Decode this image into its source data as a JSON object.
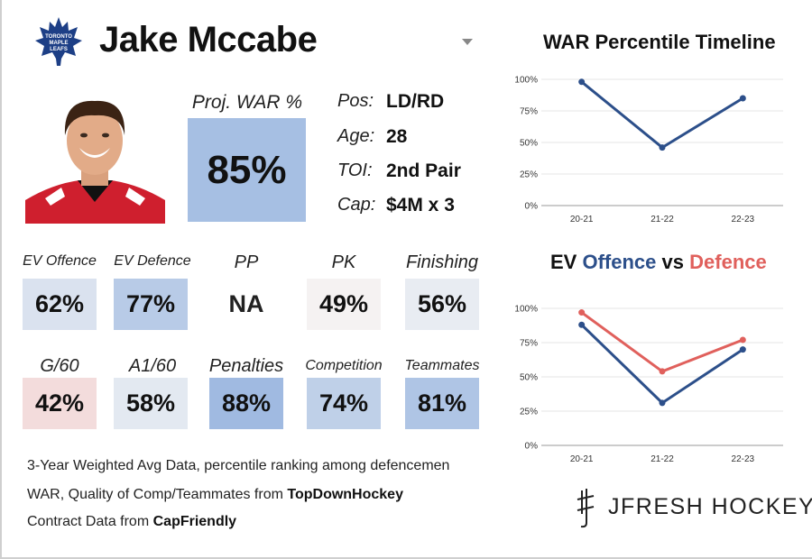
{
  "player": {
    "name": "Jake Mccabe",
    "team_logo": "maple-leafs-logo",
    "logo_text": [
      "TORONTO",
      "MAPLE",
      "LEAFS"
    ],
    "pos_label": "Pos:",
    "pos": "LD/RD",
    "age_label": "Age:",
    "age": "28",
    "toi_label": "TOI:",
    "toi": "2nd Pair",
    "cap_label": "Cap:",
    "cap": "$4M x 3"
  },
  "projected": {
    "label": "Proj. WAR %",
    "value": "85%",
    "pct": 85
  },
  "stats": [
    {
      "label": "EV Offence",
      "value": "62%",
      "pct": 62
    },
    {
      "label": "EV Defence",
      "value": "77%",
      "pct": 77
    },
    {
      "label": "PP",
      "value": "NA",
      "pct": null
    },
    {
      "label": "PK",
      "value": "49%",
      "pct": 49
    },
    {
      "label": "Finishing",
      "value": "56%",
      "pct": 56
    },
    {
      "label": "G/60",
      "value": "42%",
      "pct": 42
    },
    {
      "label": "A1/60",
      "value": "58%",
      "pct": 58
    },
    {
      "label": "Penalties",
      "value": "88%",
      "pct": 88
    },
    {
      "label": "Competition",
      "value": "74%",
      "pct": 74
    },
    {
      "label": "Teammates",
      "value": "81%",
      "pct": 81
    }
  ],
  "footer": {
    "line1": "3-Year Weighted Avg Data, percentile ranking among defencemen",
    "line2_prefix": "WAR, Quality of Comp/Teammates from ",
    "line2_source": "TopDownHockey",
    "line3_prefix": "Contract Data from ",
    "line3_source": "CapFriendly"
  },
  "brand": {
    "text": "JFRESH HOCKEY"
  },
  "colors": {
    "high": "#9bb7e0",
    "low": "#f2d6d6",
    "offence": "#2c4f8a",
    "defence": "#e0605c",
    "war_line": "#2c4f8a"
  },
  "chart_data": [
    {
      "type": "line",
      "title": "WAR Percentile Timeline",
      "categories": [
        "20-21",
        "21-22",
        "22-23"
      ],
      "yticks": [
        "0%",
        "25%",
        "50%",
        "75%",
        "100%"
      ],
      "ylim": [
        0,
        100
      ],
      "series": [
        {
          "values": [
            98,
            46,
            85
          ]
        }
      ]
    },
    {
      "type": "line",
      "title_parts": [
        "EV",
        "Offence",
        "vs",
        "Defence"
      ],
      "categories": [
        "20-21",
        "21-22",
        "22-23"
      ],
      "yticks": [
        "0%",
        "25%",
        "50%",
        "75%",
        "100%"
      ],
      "ylim": [
        0,
        100
      ],
      "series": [
        {
          "key": "offence",
          "values": [
            88,
            31,
            70
          ]
        },
        {
          "key": "defence",
          "values": [
            97,
            54,
            77
          ]
        }
      ]
    }
  ]
}
